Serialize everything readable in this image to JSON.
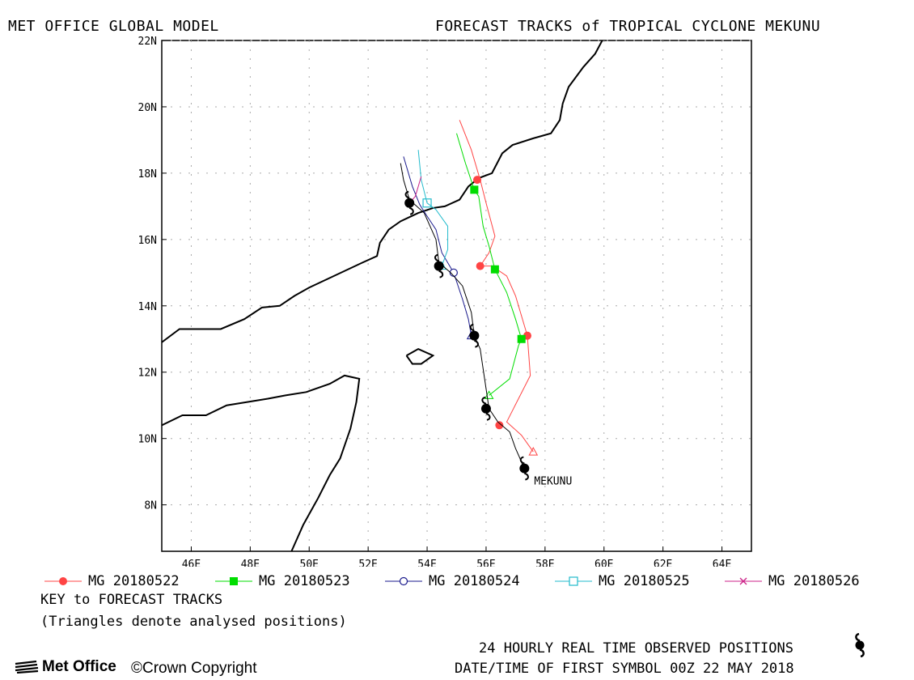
{
  "header": {
    "left": "MET OFFICE GLOBAL MODEL",
    "right": "FORECAST TRACKS of TROPICAL CYCLONE MEKUNU"
  },
  "map": {
    "lon_range": [
      45,
      65
    ],
    "lat_range": [
      6.6,
      22
    ],
    "lon_ticks": [
      {
        "value": 46,
        "label": "46E"
      },
      {
        "value": 48,
        "label": "48E"
      },
      {
        "value": 50,
        "label": "50E"
      },
      {
        "value": 52,
        "label": "52E"
      },
      {
        "value": 54,
        "label": "54E"
      },
      {
        "value": 56,
        "label": "56E"
      },
      {
        "value": 58,
        "label": "58E"
      },
      {
        "value": 60,
        "label": "60E"
      },
      {
        "value": 62,
        "label": "62E"
      },
      {
        "value": 64,
        "label": "64E"
      }
    ],
    "lat_ticks": [
      {
        "value": 8,
        "label": "8N"
      },
      {
        "value": 10,
        "label": "10N"
      },
      {
        "value": 12,
        "label": "12N"
      },
      {
        "value": 14,
        "label": "14N"
      },
      {
        "value": 16,
        "label": "16N"
      },
      {
        "value": 18,
        "label": "18N"
      },
      {
        "value": 20,
        "label": "20N"
      },
      {
        "value": 22,
        "label": "22N"
      }
    ],
    "storm_label": "MEKUNU",
    "colors": {
      "MG 20180522": "#ff4444",
      "MG 20180523": "#00dd00",
      "MG 20180524": "#1a1a8c",
      "MG 20180525": "#22bbcc",
      "MG 20180526": "#cc2288",
      "observed": "#000000"
    },
    "coastlines": [
      [
        [
          45,
          12.9
        ],
        [
          45.6,
          13.3
        ],
        [
          46.2,
          13.3
        ],
        [
          47,
          13.3
        ],
        [
          47.8,
          13.6
        ],
        [
          48.4,
          13.95
        ],
        [
          49,
          14
        ],
        [
          49.5,
          14.3
        ],
        [
          50,
          14.55
        ],
        [
          50.6,
          14.8
        ],
        [
          51.2,
          15.05
        ],
        [
          51.8,
          15.3
        ],
        [
          52.3,
          15.5
        ],
        [
          52.4,
          15.9
        ],
        [
          52.7,
          16.3
        ],
        [
          53.1,
          16.55
        ],
        [
          53.7,
          16.8
        ],
        [
          54.2,
          16.95
        ],
        [
          54.6,
          17
        ],
        [
          55.1,
          17.2
        ],
        [
          55.4,
          17.6
        ],
        [
          55.75,
          17.85
        ],
        [
          56.2,
          18
        ],
        [
          56.55,
          18.6
        ],
        [
          56.9,
          18.85
        ],
        [
          57.6,
          19.05
        ],
        [
          58.2,
          19.2
        ],
        [
          58.5,
          19.6
        ],
        [
          58.6,
          20.1
        ],
        [
          58.8,
          20.6
        ],
        [
          59.3,
          21.2
        ],
        [
          59.7,
          21.6
        ],
        [
          60,
          22.1
        ]
      ],
      [
        [
          45,
          10.4
        ],
        [
          45.7,
          10.7
        ],
        [
          46.5,
          10.7
        ],
        [
          47.2,
          11
        ],
        [
          47.9,
          11.1
        ],
        [
          48.6,
          11.2
        ],
        [
          49.2,
          11.3
        ],
        [
          49.9,
          11.4
        ],
        [
          50.7,
          11.65
        ],
        [
          51.2,
          11.9
        ],
        [
          51.7,
          11.8
        ],
        [
          51.6,
          11.1
        ],
        [
          51.4,
          10.3
        ],
        [
          51.05,
          9.4
        ],
        [
          50.7,
          8.9
        ],
        [
          50.3,
          8.2
        ],
        [
          49.8,
          7.4
        ],
        [
          49.4,
          6.6
        ]
      ],
      [
        [
          53.3,
          12.5
        ],
        [
          53.7,
          12.7
        ],
        [
          54.2,
          12.5
        ],
        [
          53.8,
          12.25
        ],
        [
          53.5,
          12.25
        ],
        [
          53.3,
          12.5
        ]
      ]
    ]
  },
  "chart_data": {
    "type": "map",
    "title": "FORECAST TRACKS of TROPICAL CYCLONE MEKUNU",
    "xlim": [
      45,
      65
    ],
    "ylim": [
      6.6,
      22
    ],
    "series": [
      {
        "name": "MG 20180522",
        "path": [
          [
            57.6,
            9.6
          ],
          [
            57.2,
            10.1
          ],
          [
            56.7,
            10.5
          ],
          [
            57.1,
            11.2
          ],
          [
            57.5,
            11.9
          ],
          [
            57.4,
            13.1
          ],
          [
            57,
            14.3
          ],
          [
            56.7,
            14.9
          ],
          [
            56.2,
            15.2
          ],
          [
            55.8,
            15.2
          ],
          [
            56.1,
            15.6
          ],
          [
            56.3,
            16.1
          ],
          [
            56,
            17.1
          ],
          [
            55.8,
            17.8
          ],
          [
            55.5,
            18.7
          ],
          [
            55.1,
            19.6
          ]
        ],
        "markers": [
          [
            56.45,
            10.4
          ],
          [
            57.4,
            13.1
          ],
          [
            55.8,
            15.2
          ],
          [
            55.7,
            17.8
          ]
        ],
        "analysed": [
          [
            57.6,
            9.6
          ]
        ]
      },
      {
        "name": "MG 20180523",
        "path": [
          [
            56.1,
            11.3
          ],
          [
            56.8,
            11.8
          ],
          [
            57.1,
            12.8
          ],
          [
            57.2,
            13
          ],
          [
            57,
            13.6
          ],
          [
            56.7,
            14.4
          ],
          [
            56.3,
            15.1
          ],
          [
            56.1,
            15.8
          ],
          [
            55.9,
            16.4
          ],
          [
            55.75,
            17.3
          ],
          [
            55.6,
            17.5
          ],
          [
            55.3,
            18.3
          ],
          [
            55,
            19.2
          ]
        ],
        "markers": [
          [
            57.2,
            13
          ],
          [
            56.3,
            15.1
          ],
          [
            55.6,
            17.5
          ]
        ],
        "analysed": [
          [
            56.1,
            11.3
          ]
        ]
      },
      {
        "name": "MG 20180524",
        "path": [
          [
            55.5,
            13.1
          ],
          [
            55.4,
            13.6
          ],
          [
            55.2,
            14.2
          ],
          [
            54.9,
            15
          ],
          [
            54.5,
            15.6
          ],
          [
            54.3,
            16.3
          ],
          [
            54,
            16.7
          ],
          [
            53.75,
            17.05
          ],
          [
            53.5,
            17.6
          ],
          [
            53.2,
            18.5
          ]
        ],
        "markers": [
          [
            54.9,
            15
          ]
        ],
        "analysed": [
          [
            55.5,
            13.1
          ]
        ]
      },
      {
        "name": "MG 20180525",
        "path": [
          [
            54.5,
            15.2
          ],
          [
            54.7,
            15.7
          ],
          [
            54.7,
            16.4
          ],
          [
            54.3,
            16.9
          ],
          [
            54,
            17.1
          ],
          [
            53.8,
            17.8
          ],
          [
            53.7,
            18.7
          ]
        ],
        "markers": [
          [
            54,
            17.1
          ]
        ],
        "analysed": [
          [
            54.5,
            15.2
          ]
        ]
      },
      {
        "name": "MG 20180526",
        "path": [
          [
            53.4,
            17.1
          ],
          [
            53.6,
            17.3
          ],
          [
            53.8,
            17.9
          ]
        ],
        "markers": [
          [
            53.4,
            17.1
          ]
        ],
        "analysed": []
      },
      {
        "name": "observed",
        "path": [
          [
            57.3,
            9.0
          ],
          [
            57.2,
            9.3
          ],
          [
            57,
            9.7
          ],
          [
            56.8,
            10.2
          ],
          [
            56.4,
            10.5
          ],
          [
            56.1,
            10.9
          ],
          [
            56,
            11.5
          ],
          [
            55.9,
            12.1
          ],
          [
            55.8,
            12.7
          ],
          [
            55.6,
            13.1
          ],
          [
            55.5,
            13.8
          ],
          [
            55.2,
            14.6
          ],
          [
            54.8,
            15
          ],
          [
            54.4,
            15.3
          ],
          [
            54.3,
            16
          ],
          [
            53.9,
            16.8
          ],
          [
            53.4,
            17.2
          ],
          [
            53.2,
            17.8
          ],
          [
            53.1,
            18.3
          ]
        ],
        "symbols": [
          [
            57.3,
            9.1
          ],
          [
            56,
            10.9
          ],
          [
            55.6,
            13.1
          ],
          [
            54.4,
            15.2
          ],
          [
            53.4,
            17.1
          ]
        ]
      }
    ]
  },
  "legend": {
    "items": [
      {
        "label": "MG 20180522",
        "marker": "circle",
        "color": "#ff4444"
      },
      {
        "label": "MG 20180523",
        "marker": "square",
        "color": "#00dd00"
      },
      {
        "label": "MG 20180524",
        "marker": "circle-open",
        "color": "#1a1a8c"
      },
      {
        "label": "MG 20180525",
        "marker": "square-open",
        "color": "#22bbcc"
      },
      {
        "label": "MG 20180526",
        "marker": "cross",
        "color": "#cc2288"
      }
    ]
  },
  "notes": {
    "key": "KEY to FORECAST TRACKS",
    "triangles": "(Triangles denote analysed positions)"
  },
  "footer": {
    "observed": "24 HOURLY REAL TIME OBSERVED POSITIONS",
    "datetime": "DATE/TIME OF FIRST SYMBOL 00Z 22 MAY 2018",
    "logo": "Met Office",
    "copyright": "Crown Copyright",
    "logo_icon": "met-office-wave-icon",
    "obs_icon": "cyclone-symbol-icon"
  }
}
